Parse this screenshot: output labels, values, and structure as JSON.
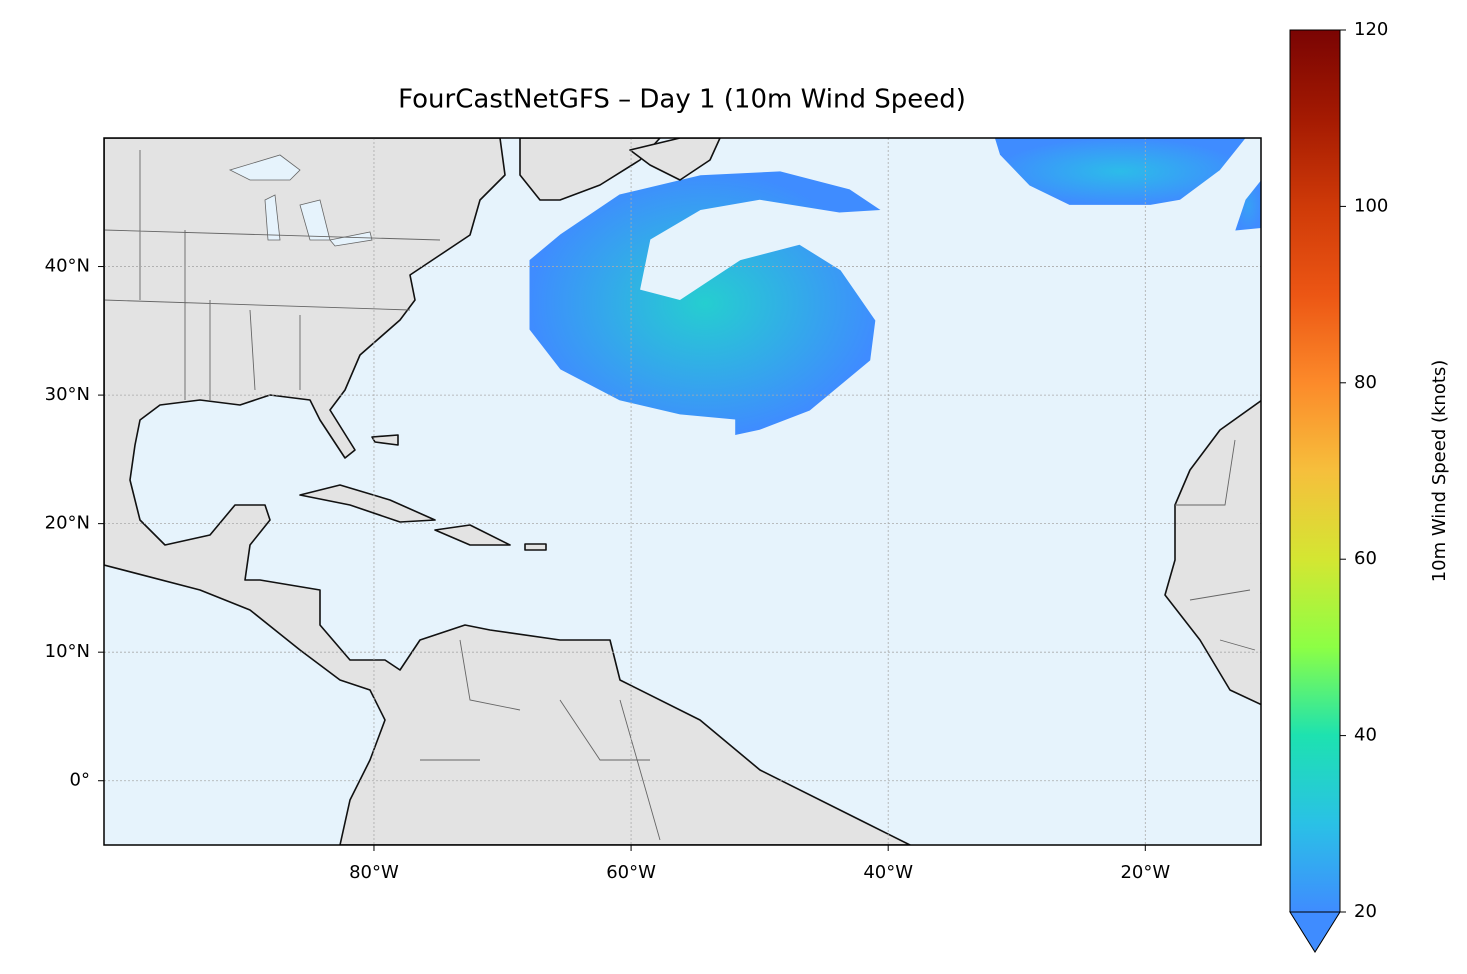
{
  "chart_data": {
    "type": "map",
    "title": "FourCastNetGFS – Day 1 (10m Wind Speed)",
    "xlim": [
      -101,
      -11
    ],
    "ylim": [
      -5,
      50
    ],
    "xticks": [
      {
        "value": -80,
        "label": "80°W"
      },
      {
        "value": -60,
        "label": "60°W"
      },
      {
        "value": -40,
        "label": "40°W"
      },
      {
        "value": -20,
        "label": "20°W"
      }
    ],
    "yticks": [
      {
        "value": 0,
        "label": "0°"
      },
      {
        "value": 10,
        "label": "10°N"
      },
      {
        "value": 20,
        "label": "20°N"
      },
      {
        "value": 30,
        "label": "30°N"
      },
      {
        "value": 40,
        "label": "40°N"
      }
    ],
    "grid": true,
    "wind_regions": [
      {
        "lon": [
          -67.9,
          -65.5,
          -60.9,
          -54.6,
          -48.4,
          -43.0,
          -40.6,
          -43.8,
          -50.0,
          -54.6,
          -58.5,
          -59.3,
          -56.2,
          -51.5,
          -46.9,
          -43.7,
          -41.0,
          -41.4,
          -46.1,
          -50.0,
          -51.9,
          -51.9,
          -56.2,
          -60.9,
          -65.5,
          -67.9
        ],
        "lat": [
          40.5,
          42.5,
          45.6,
          47.1,
          47.4,
          46.0,
          44.4,
          44.2,
          45.2,
          44.4,
          42.1,
          38.2,
          37.4,
          40.5,
          41.7,
          39.7,
          35.8,
          32.7,
          28.8,
          27.3,
          26.9,
          28.1,
          28.5,
          29.6,
          32.0,
          35.1
        ],
        "value": 34
      },
      {
        "lon": [
          -31.7,
          -12.2,
          -14.2,
          -17.3,
          -19.6,
          -25.9,
          -29.0,
          -31.3
        ],
        "lat": [
          50,
          50,
          47.5,
          45.2,
          44.8,
          44.8,
          46.3,
          48.7
        ],
        "value": 29
      },
      {
        "lon": [
          -11,
          -12.2,
          -13.0,
          -11
        ],
        "lat": [
          46.7,
          45.2,
          42.8,
          43.0
        ],
        "value": 24
      }
    ],
    "colorbar": {
      "label": "10m Wind Speed (knots)",
      "lim": [
        20,
        120
      ],
      "ticks": [
        20,
        40,
        60,
        80,
        100,
        120
      ],
      "colors": [
        "#3f8cff",
        "#2ac1e6",
        "#1de2b0",
        "#8cff45",
        "#d4e632",
        "#f6bf3c",
        "#fc8a2a",
        "#ec5614",
        "#cf3a08",
        "#a41a02",
        "#7a0403"
      ]
    }
  }
}
